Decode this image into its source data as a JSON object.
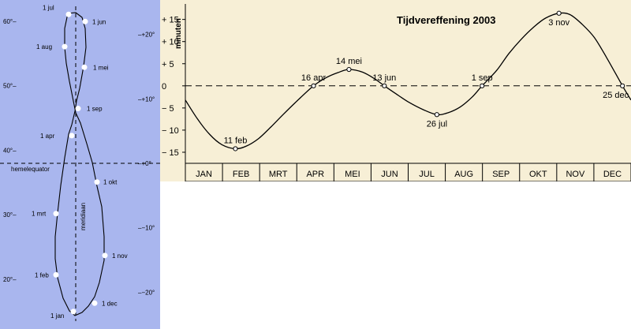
{
  "colors": {
    "analemma_bg": "#a9b6ee",
    "eot_bg": "#f7efd6",
    "ink": "#000000",
    "point_fill": "#ffffff"
  },
  "analemma": {
    "altitude_labels": [
      "60°–",
      "50°–",
      "40°–",
      "30°–",
      "20°–"
    ],
    "altitude_values": [
      60,
      50,
      40,
      30,
      20
    ],
    "declination_labels": [
      "–+20°",
      "–+10°",
      "–+0°",
      "–−10°",
      "–−20°"
    ],
    "declination_values": [
      20,
      10,
      0,
      -10,
      -20
    ],
    "equator_label": "hemelequator",
    "meridian_label": "meridiaan",
    "points": [
      {
        "label": "1 jan",
        "declination": -23.0
      },
      {
        "label": "1 feb",
        "declination": -17.3
      },
      {
        "label": "1 mrt",
        "declination": -7.8
      },
      {
        "label": "1 apr",
        "declination": 4.3
      },
      {
        "label": "1 mei",
        "declination": 14.9
      },
      {
        "label": "1 jun",
        "declination": 22.0
      },
      {
        "label": "1 jul",
        "declination": 23.1
      },
      {
        "label": "1 aug",
        "declination": 18.1
      },
      {
        "label": "1 sep",
        "declination": 8.5
      },
      {
        "label": "1 okt",
        "declination": -2.9
      },
      {
        "label": "1 nov",
        "declination": -14.3
      },
      {
        "label": "1 dec",
        "declination": -21.7
      }
    ]
  },
  "chart_data": {
    "type": "line",
    "title": "Tijdvereffening 2003",
    "ylabel": "minuten",
    "ylim": [
      -17.5,
      18.5
    ],
    "yticks": [
      15,
      10,
      5,
      0,
      -5,
      -10,
      -15
    ],
    "ytick_labels": [
      "+ 15",
      "+ 10",
      "+ 5",
      "0",
      "− 5",
      "− 10",
      "− 15"
    ],
    "months": [
      "JAN",
      "FEB",
      "MRT",
      "APR",
      "MEI",
      "JUN",
      "JUL",
      "AUG",
      "SEP",
      "OKT",
      "NOV",
      "DEC"
    ],
    "series": [
      {
        "x": [
          0,
          10,
          20,
          30,
          41,
          50,
          60,
          70,
          80,
          90,
          105,
          115,
          125,
          134,
          145,
          155,
          163,
          172,
          183,
          195,
          206,
          215,
          225,
          235,
          243,
          255,
          265,
          275,
          285,
          295,
          306,
          315,
          325,
          335,
          345,
          358,
          365
        ],
        "y": [
          -3.2,
          -7.5,
          -11.0,
          -13.3,
          -14.2,
          -13.6,
          -11.9,
          -9.3,
          -6.5,
          -3.8,
          0.0,
          1.8,
          3.0,
          3.7,
          3.1,
          1.6,
          0.0,
          -1.7,
          -3.7,
          -5.4,
          -6.5,
          -6.1,
          -4.8,
          -2.5,
          0.0,
          3.5,
          7.3,
          10.5,
          13.2,
          15.3,
          16.4,
          16.1,
          13.9,
          10.9,
          6.4,
          0.0,
          -3.2
        ]
      }
    ],
    "markers": [
      {
        "label": "11 feb",
        "x": 41,
        "y": -14.2,
        "label_pos": "above"
      },
      {
        "label": "16 apr",
        "x": 105,
        "y": 0,
        "label_pos": "above"
      },
      {
        "label": "14 mei",
        "x": 134,
        "y": 3.7,
        "label_pos": "above"
      },
      {
        "label": "13 jun",
        "x": 163,
        "y": 0,
        "label_pos": "above"
      },
      {
        "label": "26 jul",
        "x": 206,
        "y": -6.5,
        "label_pos": "below"
      },
      {
        "label": "1 sep",
        "x": 243,
        "y": 0,
        "label_pos": "above"
      },
      {
        "label": "3 nov",
        "x": 306,
        "y": 16.4,
        "label_pos": "below"
      },
      {
        "label": "25 dec",
        "x": 358,
        "y": 0,
        "label_pos": "below"
      }
    ],
    "reference_line": 0
  }
}
